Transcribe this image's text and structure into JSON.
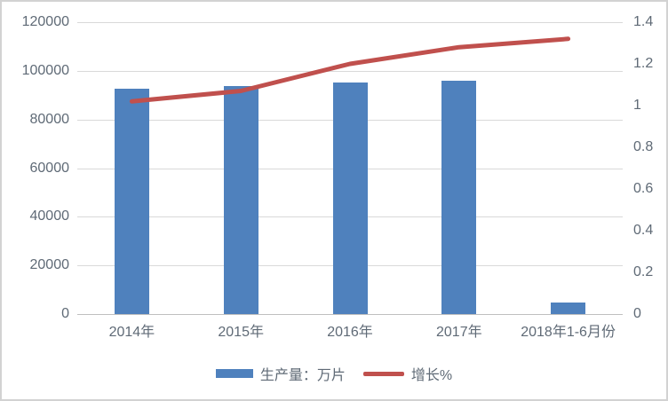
{
  "colors": {
    "bar": "#4F81BD",
    "line": "#C0504D",
    "gridline": "#d9d9d9",
    "axis_line": "#bfbfbf",
    "text": "#5f6a76",
    "background": "#ffffff",
    "frame_border": "#d2d2d2"
  },
  "chart_data": {
    "type": "combo-bar-line",
    "categories": [
      "2014年",
      "2015年",
      "2016年",
      "2017年",
      "2018年1-6月份"
    ],
    "series": [
      {
        "name": "生产量：万片",
        "chart_type": "bar",
        "axis": "left",
        "color": "#4F81BD",
        "values": [
          92600,
          93700,
          95200,
          96000,
          4700
        ]
      },
      {
        "name": "增长%",
        "chart_type": "line",
        "axis": "right",
        "color": "#C0504D",
        "values": [
          1.02,
          1.07,
          1.2,
          1.28,
          1.32
        ]
      }
    ],
    "left_axis": {
      "min": 0,
      "max": 120000,
      "step": 20000,
      "tick_labels": [
        "120000",
        "100000",
        "80000",
        "60000",
        "40000",
        "20000",
        "0"
      ]
    },
    "right_axis": {
      "min": 0,
      "max": 1.4,
      "step": 0.2,
      "tick_labels": [
        "1.4",
        "1.2",
        "1",
        "0.8",
        "0.6",
        "0.4",
        "0.2",
        "0"
      ]
    },
    "grid": true,
    "legend_position": "bottom"
  }
}
